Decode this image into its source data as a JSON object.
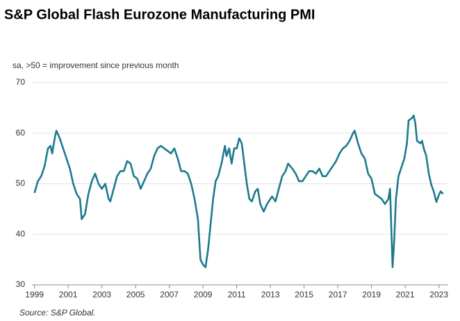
{
  "chart_data": {
    "type": "line",
    "title": "S&P Global Flash Eurozone Manufacturing PMI",
    "subtitle": "sa, >50 = improvement  since previous  month",
    "source": "Source:  S&P Global.",
    "color": "#1b7a8c",
    "x": [
      1999.0,
      1999.2,
      1999.4,
      1999.6,
      1999.8,
      1999.95,
      2000.05,
      2000.2,
      2000.3,
      2000.5,
      2000.7,
      2000.9,
      2001.1,
      2001.3,
      2001.5,
      2001.7,
      2001.8,
      2002.0,
      2002.2,
      2002.4,
      2002.6,
      2002.8,
      2003.0,
      2003.2,
      2003.4,
      2003.5,
      2003.7,
      2003.9,
      2004.1,
      2004.3,
      2004.5,
      2004.7,
      2004.9,
      2005.1,
      2005.3,
      2005.5,
      2005.7,
      2005.9,
      2006.1,
      2006.3,
      2006.5,
      2006.7,
      2006.9,
      2007.1,
      2007.3,
      2007.5,
      2007.7,
      2007.9,
      2008.1,
      2008.3,
      2008.5,
      2008.7,
      2008.85,
      2009.0,
      2009.15,
      2009.3,
      2009.45,
      2009.6,
      2009.75,
      2009.9,
      2010.1,
      2010.3,
      2010.4,
      2010.55,
      2010.7,
      2010.85,
      2011.0,
      2011.15,
      2011.3,
      2011.45,
      2011.6,
      2011.75,
      2011.9,
      2012.1,
      2012.25,
      2012.4,
      2012.6,
      2012.8,
      2012.9,
      2013.1,
      2013.3,
      2013.5,
      2013.7,
      2013.9,
      2014.05,
      2014.3,
      2014.5,
      2014.7,
      2014.9,
      2015.1,
      2015.3,
      2015.5,
      2015.7,
      2015.9,
      2016.1,
      2016.3,
      2016.5,
      2016.7,
      2016.9,
      2017.1,
      2017.3,
      2017.5,
      2017.7,
      2017.9,
      2018.0,
      2018.2,
      2018.4,
      2018.6,
      2018.8,
      2019.0,
      2019.2,
      2019.4,
      2019.6,
      2019.8,
      2020.0,
      2020.1,
      2020.25,
      2020.35,
      2020.45,
      2020.6,
      2020.8,
      2020.95,
      2021.1,
      2021.2,
      2021.4,
      2021.5,
      2021.6,
      2021.7,
      2021.9,
      2022.0,
      2022.1,
      2022.25,
      2022.4,
      2022.55,
      2022.7,
      2022.85,
      2023.0,
      2023.1,
      2023.25
    ],
    "values": [
      48.2,
      50.5,
      51.5,
      53.5,
      57,
      57.5,
      56,
      59,
      60.5,
      59,
      57,
      55,
      53,
      50,
      48,
      47,
      43,
      44,
      48,
      50.5,
      52,
      50,
      49,
      50,
      47,
      46.5,
      49,
      51.5,
      52.5,
      52.5,
      54.5,
      54,
      51.5,
      51,
      49,
      50.5,
      52,
      53,
      55.5,
      57,
      57.5,
      57,
      56.5,
      56,
      57,
      55,
      52.5,
      52.5,
      52,
      50,
      47,
      43,
      35,
      34,
      33.5,
      37,
      42,
      47,
      50.5,
      51.5,
      54,
      57.5,
      55.5,
      57,
      54,
      57,
      57,
      59,
      58,
      54,
      50,
      47,
      46.5,
      48.5,
      49,
      46,
      44.5,
      46,
      46.5,
      47.5,
      46.5,
      49,
      51.5,
      52.5,
      54,
      53,
      52,
      50.5,
      50.5,
      51.5,
      52.5,
      52.5,
      52,
      53,
      51.5,
      51.5,
      52.5,
      53.5,
      54.5,
      56,
      57,
      57.5,
      58.5,
      60,
      60.5,
      58,
      56,
      55,
      52,
      51,
      48,
      47.5,
      47,
      46,
      47,
      49,
      33.5,
      39,
      47,
      51.5,
      53.5,
      55,
      58,
      62.5,
      63,
      63.5,
      62,
      58.5,
      58,
      58.5,
      57,
      55.5,
      52,
      49.8,
      48.4,
      46.4,
      47.8,
      48.5,
      48
    ],
    "xlim": [
      1998.85,
      2023.55
    ],
    "xticks": [
      1999,
      2001,
      2003,
      2005,
      2007,
      2009,
      2011,
      2013,
      2015,
      2017,
      2019,
      2021,
      2023
    ],
    "ylim": [
      30,
      70
    ],
    "yticks": [
      30,
      40,
      50,
      60,
      70
    ],
    "grid": true
  }
}
